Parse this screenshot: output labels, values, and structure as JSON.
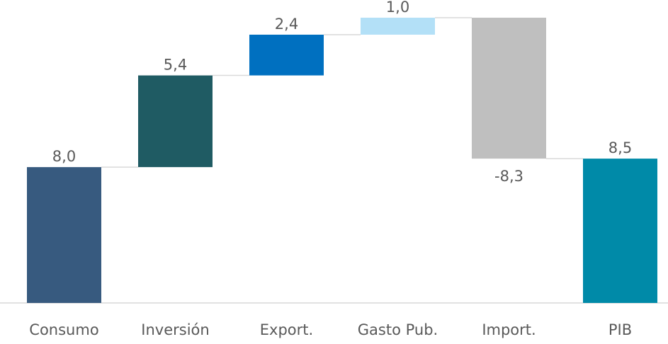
{
  "chart_data": {
    "type": "waterfall",
    "categories": [
      "Consumo",
      "Inversión",
      "Export.",
      "Gasto Pub.",
      "Import.",
      "PIB"
    ],
    "values": [
      8.0,
      5.4,
      2.4,
      1.0,
      -8.3,
      8.5
    ],
    "value_labels": [
      "8,0",
      "5,4",
      "2,4",
      "1,0",
      "-8,3",
      "8,5"
    ],
    "is_total": [
      false,
      false,
      false,
      false,
      false,
      true
    ],
    "colors": [
      "#375a7f",
      "#1f5b63",
      "#0070c0",
      "#b3e0f7",
      "#bfbfbf",
      "#008aa8"
    ]
  }
}
